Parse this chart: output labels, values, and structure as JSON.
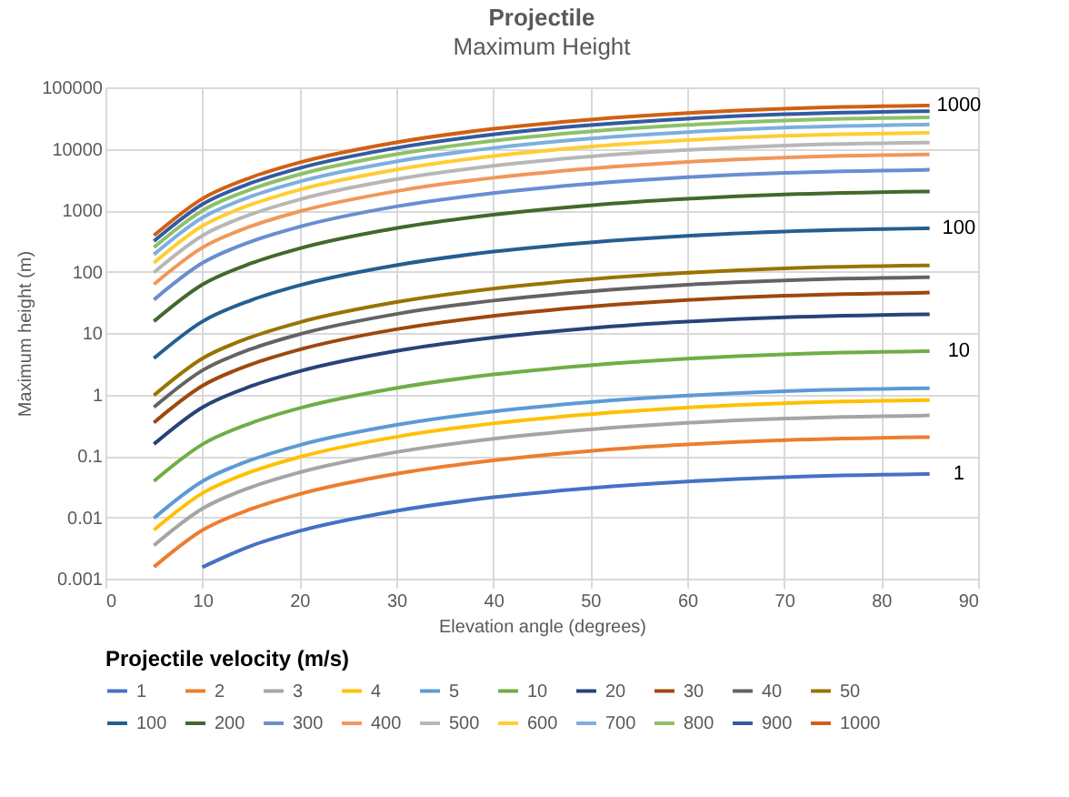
{
  "chart_data": {
    "type": "line",
    "title": "Projectile",
    "subtitle": "Maximum Height",
    "xlabel": "Elevation angle (degrees)",
    "ylabel": "Maximum height (m)",
    "legend_title": "Projectile velocity (m/s)",
    "x": [
      5,
      10,
      15,
      20,
      30,
      40,
      50,
      60,
      70,
      85
    ],
    "series": [
      {
        "name": "1",
        "color": "#4472c4",
        "values": [
          null,
          0.00154,
          0.00341,
          0.00596,
          0.0127,
          0.0211,
          0.0299,
          0.0382,
          0.045,
          0.0506
        ]
      },
      {
        "name": "2",
        "color": "#ed7d31",
        "values": [
          0.00155,
          0.00616,
          0.0136,
          0.0238,
          0.051,
          0.0842,
          0.12,
          0.153,
          0.18,
          0.202
        ]
      },
      {
        "name": "3",
        "color": "#a5a5a5",
        "values": [
          0.00348,
          0.0138,
          0.0307,
          0.0536,
          0.115,
          0.19,
          0.269,
          0.344,
          0.405,
          0.455
        ]
      },
      {
        "name": "4",
        "color": "#ffc000",
        "values": [
          0.0062,
          0.0246,
          0.0546,
          0.0954,
          0.204,
          0.337,
          0.478,
          0.612,
          0.72,
          0.81
        ]
      },
      {
        "name": "5",
        "color": "#5b9bd5",
        "values": [
          0.00968,
          0.0385,
          0.0853,
          0.149,
          0.318,
          0.527,
          0.748,
          0.956,
          1.13,
          1.26
        ]
      },
      {
        "name": "10",
        "color": "#70ad47",
        "values": [
          0.0387,
          0.154,
          0.341,
          0.596,
          1.27,
          2.11,
          2.99,
          3.82,
          4.5,
          5.06
        ]
      },
      {
        "name": "20",
        "color": "#264478",
        "values": [
          0.155,
          0.616,
          1.36,
          2.38,
          5.1,
          8.42,
          12,
          15.3,
          18,
          20.2
        ]
      },
      {
        "name": "30",
        "color": "#9e480e",
        "values": [
          0.348,
          1.38,
          3.07,
          5.36,
          11.5,
          19,
          26.9,
          34.4,
          40.5,
          45.5
        ]
      },
      {
        "name": "40",
        "color": "#636363",
        "values": [
          0.62,
          2.46,
          5.46,
          9.54,
          20.4,
          33.7,
          47.8,
          61.2,
          72,
          81
        ]
      },
      {
        "name": "50",
        "color": "#997300",
        "values": [
          0.968,
          3.85,
          8.53,
          14.9,
          31.8,
          52.7,
          74.8,
          95.6,
          113,
          126
        ]
      },
      {
        "name": "100",
        "color": "#255e91",
        "values": [
          3.87,
          15.4,
          34.1,
          59.6,
          127,
          211,
          299,
          382,
          450,
          506
        ]
      },
      {
        "name": "200",
        "color": "#43682b",
        "values": [
          15.5,
          61.6,
          136,
          238,
          510,
          842,
          1200,
          1530,
          1800,
          2020
        ]
      },
      {
        "name": "300",
        "color": "#698ed0",
        "values": [
          34.8,
          138,
          307,
          536,
          1150,
          1900,
          2690,
          3440,
          4050,
          4550
        ]
      },
      {
        "name": "400",
        "color": "#f1975a",
        "values": [
          62,
          246,
          546,
          954,
          2040,
          3370,
          4780,
          6120,
          7200,
          8100
        ]
      },
      {
        "name": "500",
        "color": "#b7b7b7",
        "values": [
          96.8,
          385,
          853,
          1490,
          3180,
          5270,
          7480,
          9560,
          11300,
          12600
        ]
      },
      {
        "name": "600",
        "color": "#ffcd33",
        "values": [
          139,
          554,
          1230,
          2150,
          4570,
          7600,
          10800,
          13800,
          16200,
          18200
        ]
      },
      {
        "name": "700",
        "color": "#7cafdd",
        "values": [
          190,
          755,
          1670,
          2920,
          6220,
          10300,
          14700,
          18700,
          22100,
          24800
        ]
      },
      {
        "name": "800",
        "color": "#8cc168",
        "values": [
          248,
          986,
          2180,
          3810,
          8130,
          13500,
          19100,
          24400,
          28800,
          32400
        ]
      },
      {
        "name": "900",
        "color": "#335aa1",
        "values": [
          313,
          1250,
          2760,
          4830,
          10300,
          17100,
          24200,
          30900,
          36500,
          41000
        ]
      },
      {
        "name": "1000",
        "color": "#d26012",
        "values": [
          387,
          1540,
          3410,
          5960,
          12700,
          21100,
          29900,
          38200,
          45000,
          50600
        ]
      }
    ],
    "annotations": [
      "1",
      "10",
      "100",
      "1000"
    ],
    "xlim": [
      0,
      90
    ],
    "xticks": [
      0,
      10,
      20,
      30,
      40,
      50,
      60,
      70,
      80,
      90
    ],
    "ylim": [
      0.001,
      100000
    ],
    "yticks": [
      0.001,
      0.01,
      0.1,
      1,
      10,
      100,
      1000,
      10000,
      100000
    ],
    "log": true,
    "grid": true,
    "legend": "bottom",
    "line_style": "solid"
  }
}
